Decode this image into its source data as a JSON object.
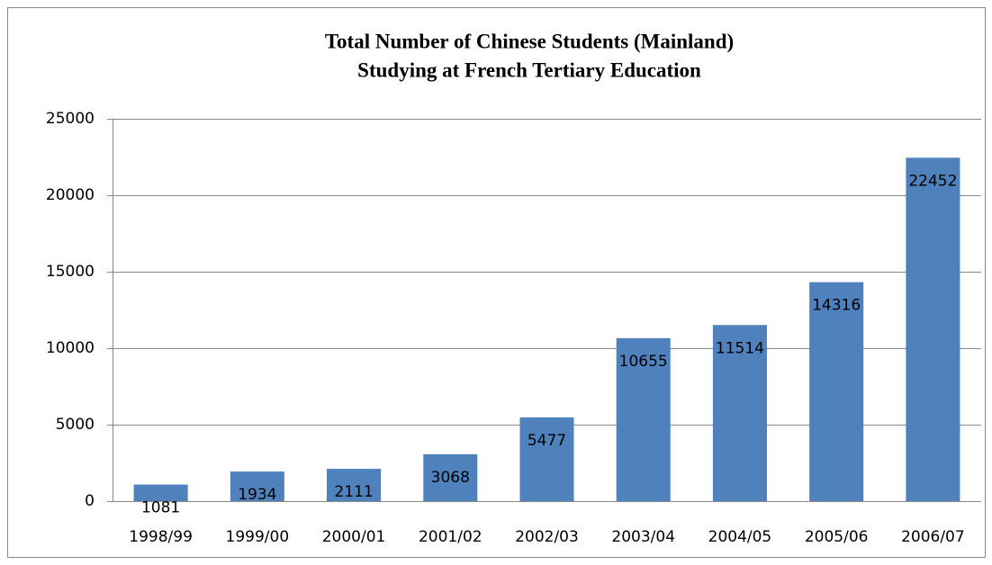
{
  "chart_data": {
    "type": "bar",
    "title": [
      "Total Number of Chinese Students (Mainland)",
      "Studying at French Tertiary Education"
    ],
    "categories": [
      "1998/99",
      "1999/00",
      "2000/01",
      "2001/02",
      "2002/03",
      "2003/04",
      "2004/05",
      "2005/06",
      "2006/07"
    ],
    "values": [
      1081,
      1934,
      2111,
      3068,
      5477,
      10655,
      11514,
      14316,
      22452
    ],
    "color": "#4f81bd",
    "ylim": [
      0,
      25000
    ],
    "yticks": [
      0,
      5000,
      10000,
      15000,
      20000,
      25000
    ],
    "grid": true
  }
}
